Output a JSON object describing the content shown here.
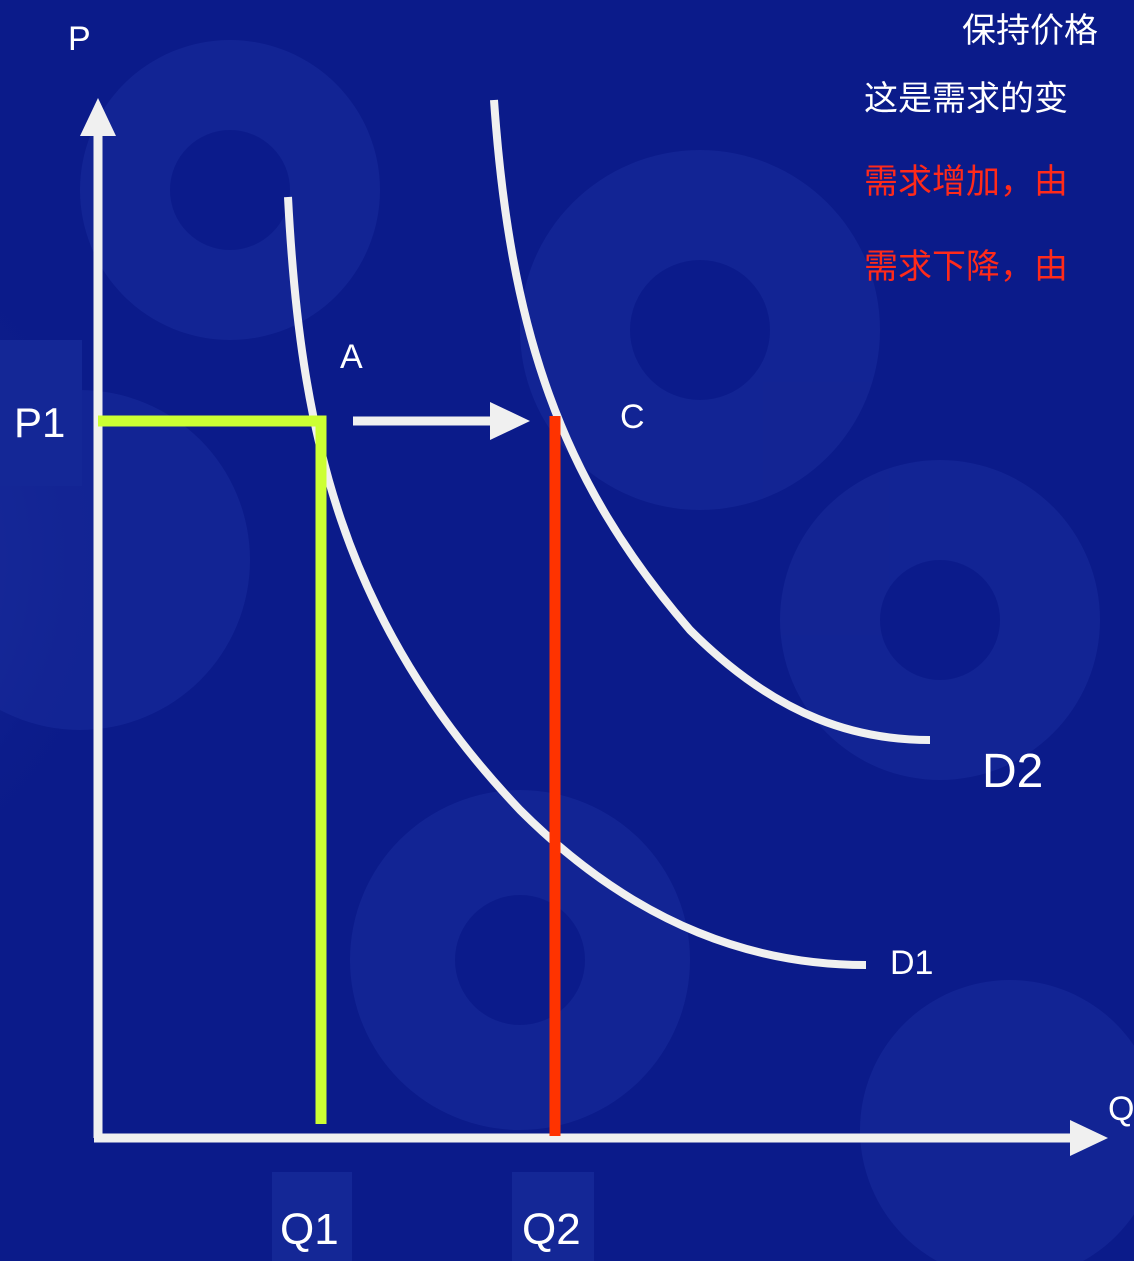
{
  "axes": {
    "y_label": "P",
    "x_label": "Q"
  },
  "labels": {
    "price": "P1",
    "point_a": "A",
    "point_c": "C",
    "qty1": "Q1",
    "qty2": "Q2",
    "curve_d1": "D1",
    "curve_d2": "D2"
  },
  "text": {
    "line1": "保持价格",
    "line2": "这是需求的变",
    "line3": "需求增加，由",
    "line4": "需求下降，由"
  },
  "colors": {
    "background": "#0b1b8a",
    "axis": "#f0f0f0",
    "curve": "#f0f0f0",
    "q1_line": "#ccff33",
    "q2_line": "#ff3300",
    "text_white": "#ffffff",
    "text_red": "#ff2a1a"
  }
}
